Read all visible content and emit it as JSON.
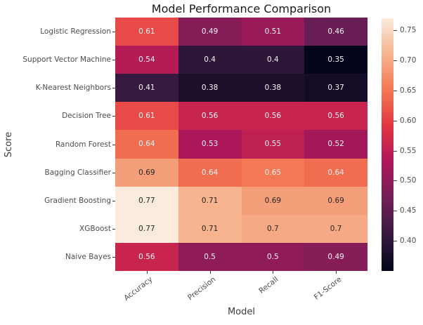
{
  "chart_data": {
    "type": "heatmap",
    "title": "Model Performance Comparison",
    "xlabel": "Model",
    "ylabel": "Score",
    "columns": [
      "Accuracy",
      "Precision",
      "Recall",
      "F1-Score"
    ],
    "rows": [
      "Logistic Regression",
      "Support Vector Machine",
      "K-Nearest Neighbors",
      "Decision Tree",
      "Random Forest",
      "Bagging Classifier",
      "Gradient Boosting",
      "XGBoost",
      "Naive Bayes"
    ],
    "values": [
      [
        0.61,
        0.49,
        0.51,
        0.46
      ],
      [
        0.54,
        0.4,
        0.4,
        0.35
      ],
      [
        0.41,
        0.38,
        0.38,
        0.37
      ],
      [
        0.61,
        0.56,
        0.56,
        0.56
      ],
      [
        0.64,
        0.53,
        0.55,
        0.52
      ],
      [
        0.69,
        0.64,
        0.65,
        0.64
      ],
      [
        0.77,
        0.71,
        0.69,
        0.69
      ],
      [
        0.77,
        0.71,
        0.7,
        0.7
      ],
      [
        0.56,
        0.5,
        0.5,
        0.49
      ]
    ],
    "vmin": 0.35,
    "vmax": 0.77,
    "colormap": {
      "name": "rocket",
      "stops": [
        {
          "t": 0.0,
          "color": "#03051A"
        },
        {
          "t": 0.14,
          "color": "#35193E"
        },
        {
          "t": 0.28,
          "color": "#701F57"
        },
        {
          "t": 0.43,
          "color": "#AD1759"
        },
        {
          "t": 0.57,
          "color": "#E13342"
        },
        {
          "t": 0.71,
          "color": "#F37651"
        },
        {
          "t": 0.86,
          "color": "#F6B48F"
        },
        {
          "t": 1.0,
          "color": "#FAEBDD"
        }
      ]
    },
    "colorbar_ticks": [
      0.75,
      0.7,
      0.65,
      0.6,
      0.55,
      0.5,
      0.45,
      0.4
    ],
    "annotation_dark_color": "#262626",
    "annotation_light_color": "#F5F5F5",
    "legend_position": "right-colorbar",
    "grid": false
  }
}
